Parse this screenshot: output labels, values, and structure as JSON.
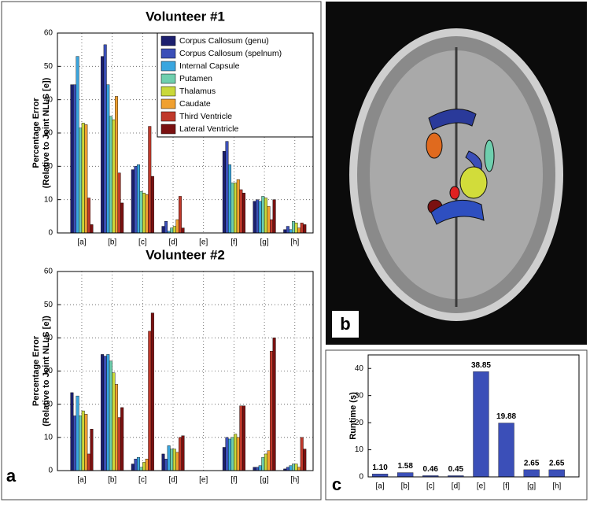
{
  "chart_data": [
    {
      "type": "bar",
      "title": "Volunteer #1",
      "panel_label": "a",
      "ylabel": [
        "Percentage Error",
        "(Relative to Joint NLLS [e])"
      ],
      "categories": [
        "[a]",
        "[b]",
        "[c]",
        "[d]",
        "[e]",
        "[f]",
        "[g]",
        "[h]"
      ],
      "ylim": [
        0,
        60
      ],
      "yticks": [
        0,
        10,
        20,
        30,
        40,
        50,
        60
      ],
      "grid": true,
      "legend": "upper right",
      "series": [
        {
          "name": "Corpus Callosum (genu)",
          "color": "#1c1f6e",
          "values": [
            44.5,
            53,
            19,
            2,
            0,
            24.5,
            9.5,
            1
          ]
        },
        {
          "name": "Corpus Callosum (spelnum)",
          "color": "#3b4fb8",
          "values": [
            44.5,
            56.5,
            20,
            3.5,
            0,
            27.5,
            10,
            2
          ]
        },
        {
          "name": "Internal Capsule",
          "color": "#3aa6df",
          "values": [
            53,
            44.5,
            20.5,
            0.5,
            0,
            20.5,
            9.5,
            1
          ]
        },
        {
          "name": "Putamen",
          "color": "#6fcfae",
          "values": [
            31.5,
            35,
            12.5,
            1.5,
            0,
            15,
            11,
            3.5
          ]
        },
        {
          "name": "Thalamus",
          "color": "#c9d83a",
          "values": [
            33,
            34,
            12,
            2,
            0,
            15,
            10.5,
            3
          ]
        },
        {
          "name": "Caudate",
          "color": "#f0a030",
          "values": [
            32.5,
            41,
            11.5,
            4,
            0,
            16,
            8,
            1.5
          ]
        },
        {
          "name": "Third Ventricle",
          "color": "#c0392b",
          "values": [
            10.5,
            18,
            32,
            11,
            0,
            13,
            4,
            3
          ]
        },
        {
          "name": "Lateral Ventricle",
          "color": "#7a1010",
          "values": [
            2.5,
            9,
            17,
            1.5,
            0,
            12,
            10,
            2.5
          ]
        }
      ]
    },
    {
      "type": "bar",
      "title": "Volunteer #2",
      "ylabel": [
        "Percentage Error",
        "(Relative to Joint NLLS [e])"
      ],
      "categories": [
        "[a]",
        "[b]",
        "[c]",
        "[d]",
        "[e]",
        "[f]",
        "[g]",
        "[h]"
      ],
      "ylim": [
        0,
        60
      ],
      "yticks": [
        0,
        10,
        20,
        30,
        40,
        50,
        60
      ],
      "grid": true,
      "series": [
        {
          "color": "#1c1f6e",
          "values": [
            23.5,
            35,
            2,
            5,
            0,
            7,
            1,
            0.5
          ]
        },
        {
          "color": "#3b4fb8",
          "values": [
            16.5,
            34.5,
            3.5,
            3.5,
            0,
            10,
            1,
            1
          ]
        },
        {
          "color": "#3aa6df",
          "values": [
            22.5,
            35,
            4,
            7.5,
            0,
            9.5,
            1.5,
            1.5
          ]
        },
        {
          "color": "#6fcfae",
          "values": [
            16.5,
            33,
            1,
            6.5,
            0,
            10,
            4,
            2
          ]
        },
        {
          "color": "#c9d83a",
          "values": [
            18,
            29.5,
            2.5,
            6.5,
            0,
            11,
            5,
            2
          ]
        },
        {
          "color": "#f0a030",
          "values": [
            17,
            26,
            3.5,
            5.5,
            0,
            10,
            6,
            1
          ]
        },
        {
          "color": "#c0392b",
          "values": [
            5,
            16,
            42,
            10,
            0,
            19.5,
            36,
            10
          ]
        },
        {
          "color": "#7a1010",
          "values": [
            12.5,
            19,
            47.5,
            10.5,
            0,
            19.5,
            40,
            6.5
          ]
        }
      ]
    },
    {
      "type": "bar",
      "panel_label": "c",
      "ylabel": [
        "Runtime (s)"
      ],
      "categories": [
        "[a]",
        "[b]",
        "[c]",
        "[d]",
        "[e]",
        "[f]",
        "[g]",
        "[h]"
      ],
      "ylim": [
        0,
        45
      ],
      "yticks": [
        0,
        10,
        20,
        30,
        40
      ],
      "grid": false,
      "series": [
        {
          "color": "#3b4fb8",
          "values": [
            1.1,
            1.58,
            0.46,
            0.45,
            38.85,
            19.88,
            2.65,
            2.65
          ],
          "value_labels": [
            "1.10",
            "1.58",
            "0.46",
            "0.45",
            "38.85",
            "19.88",
            "2.65",
            "2.65"
          ]
        }
      ]
    }
  ],
  "image": {
    "panel_label": "b"
  }
}
